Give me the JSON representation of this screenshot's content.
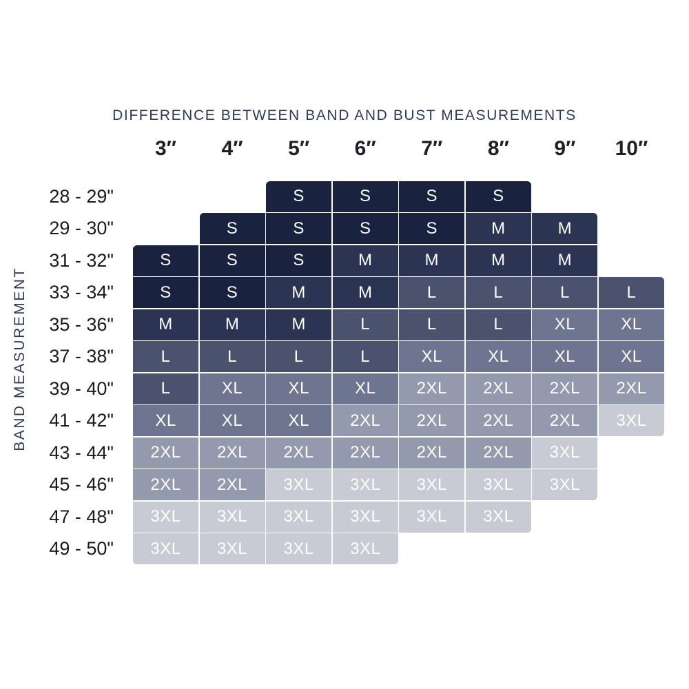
{
  "title": "DIFFERENCE BETWEEN BAND AND BUST MEASUREMENTS",
  "y_axis_label": "BAND MEASUREMENT",
  "chart_data": {
    "type": "heatmap",
    "title": "DIFFERENCE BETWEEN BAND AND BUST MEASUREMENTS",
    "y_axis_title": "BAND MEASUREMENT",
    "columns": [
      "3″",
      "4″",
      "5″",
      "6″",
      "7″",
      "8″",
      "9″",
      "10″"
    ],
    "row_labels": [
      "28 - 29\"",
      "29 - 30\"",
      "31 - 32\"",
      "33 - 34\"",
      "35 - 36\"",
      "37 - 38\"",
      "39 - 40\"",
      "41 - 42\"",
      "43 - 44\"",
      "45 - 46\"",
      "47 - 48\"",
      "49 - 50\""
    ],
    "cells": [
      [
        null,
        null,
        "S",
        "S",
        "S",
        "S",
        null,
        null
      ],
      [
        null,
        "S",
        "S",
        "S",
        "S",
        "M",
        "M",
        null
      ],
      [
        "S",
        "S",
        "S",
        "M",
        "M",
        "M",
        "M",
        null
      ],
      [
        "S",
        "S",
        "M",
        "M",
        "L",
        "L",
        "L",
        "L"
      ],
      [
        "M",
        "M",
        "M",
        "L",
        "L",
        "L",
        "XL",
        "XL"
      ],
      [
        "L",
        "L",
        "L",
        "L",
        "XL",
        "XL",
        "XL",
        "XL"
      ],
      [
        "L",
        "XL",
        "XL",
        "XL",
        "2XL",
        "2XL",
        "2XL",
        "2XL"
      ],
      [
        "XL",
        "XL",
        "XL",
        "2XL",
        "2XL",
        "2XL",
        "2XL",
        "3XL"
      ],
      [
        "2XL",
        "2XL",
        "2XL",
        "2XL",
        "2XL",
        "2XL",
        "3XL",
        null
      ],
      [
        "2XL",
        "2XL",
        "3XL",
        "3XL",
        "3XL",
        "3XL",
        "3XL",
        null
      ],
      [
        "3XL",
        "3XL",
        "3XL",
        "3XL",
        "3XL",
        "3XL",
        null,
        null
      ],
      [
        "3XL",
        "3XL",
        "3XL",
        "3XL",
        null,
        null,
        null,
        null
      ]
    ],
    "size_colors": {
      "S": "#19223f",
      "M": "#2c3454",
      "L": "#4a526d",
      "XL": "#6e7590",
      "2XL": "#949aad",
      "3XL": "#c8cbd4"
    },
    "cell_text_color": "#ffffff"
  }
}
